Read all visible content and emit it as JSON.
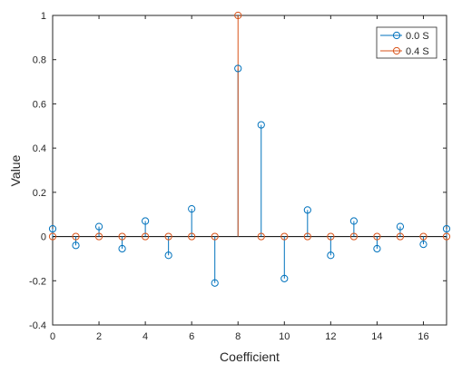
{
  "chart_data": {
    "type": "stem",
    "xlabel": "Coefficient",
    "ylabel": "Value",
    "xlim": [
      0,
      17
    ],
    "ylim": [
      -0.4,
      1
    ],
    "xticks": [
      0,
      2,
      4,
      6,
      8,
      10,
      12,
      14,
      16
    ],
    "yticks": [
      -0.4,
      -0.2,
      0,
      0.2,
      0.4,
      0.6,
      0.8,
      1
    ],
    "xtick_labels": [
      "0",
      "2",
      "4",
      "6",
      "8",
      "10",
      "12",
      "14",
      "16"
    ],
    "ytick_labels": [
      "-0.4",
      "-0.2",
      "0",
      "0.2",
      "0.4",
      "0.6",
      "0.8",
      "1"
    ],
    "grid": false,
    "legend_position": "top-right",
    "x": [
      0,
      1,
      2,
      3,
      4,
      5,
      6,
      7,
      8,
      9,
      10,
      11,
      12,
      13,
      14,
      15,
      16,
      17
    ],
    "series": [
      {
        "name": "0.0 S",
        "color": "#0072BD",
        "values": [
          0.035,
          -0.04,
          0.045,
          -0.055,
          0.07,
          -0.085,
          0.125,
          -0.21,
          0.76,
          0.505,
          -0.19,
          0.12,
          -0.085,
          0.07,
          -0.055,
          0.045,
          -0.035,
          0.035
        ]
      },
      {
        "name": "0.4 S",
        "color": "#D95319",
        "values": [
          0,
          0,
          0,
          0,
          0,
          0,
          0,
          0,
          1,
          0,
          0,
          0,
          0,
          0,
          0,
          0,
          0,
          0
        ]
      }
    ]
  }
}
